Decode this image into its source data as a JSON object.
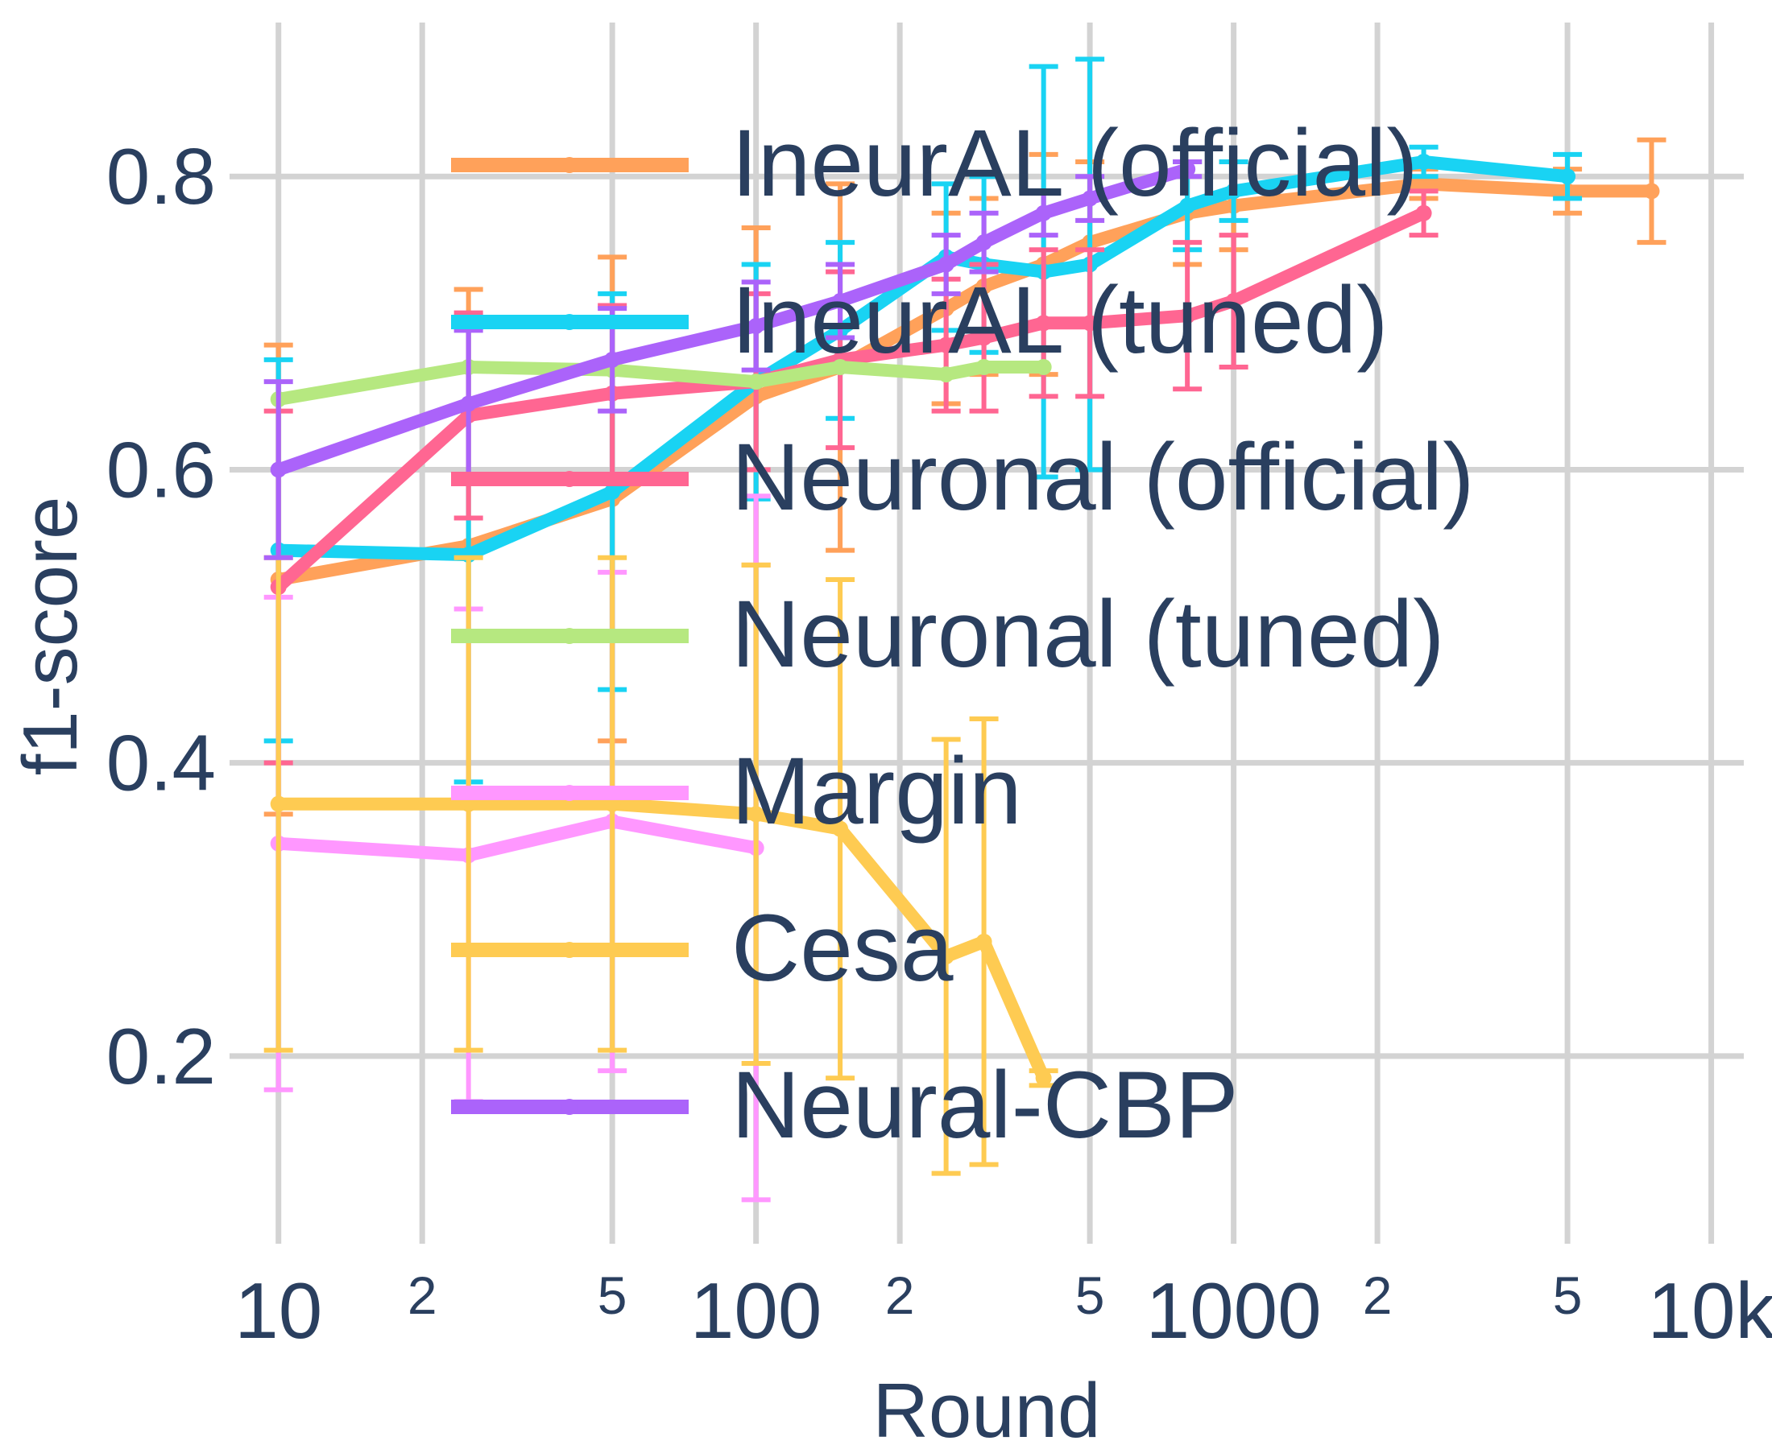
{
  "chart_data": {
    "type": "line",
    "xlabel": "Round",
    "ylabel": "f1-score",
    "x_scale": "log",
    "xlim": [
      7.9,
      11700
    ],
    "ylim": [
      0.072,
      0.905
    ],
    "grid": true,
    "legend_position": "top-left",
    "x_major_ticks": [
      {
        "value": 10,
        "label": "10"
      },
      {
        "value": 100,
        "label": "100"
      },
      {
        "value": 1000,
        "label": "1000"
      },
      {
        "value": 10000,
        "label": "10k"
      }
    ],
    "x_minor_ticks": [
      {
        "value": 20,
        "label": "2"
      },
      {
        "value": 50,
        "label": "5"
      },
      {
        "value": 200,
        "label": "2"
      },
      {
        "value": 500,
        "label": "5"
      },
      {
        "value": 2000,
        "label": "2"
      },
      {
        "value": 5000,
        "label": "5"
      }
    ],
    "y_ticks": [
      {
        "value": 0.2,
        "label": "0.2"
      },
      {
        "value": 0.4,
        "label": "0.4"
      },
      {
        "value": 0.6,
        "label": "0.6"
      },
      {
        "value": 0.8,
        "label": "0.8"
      }
    ],
    "series": [
      {
        "name": "IneurAL (official)",
        "color": "#FFA15A",
        "x": [
          10,
          25,
          50,
          100,
          150,
          250,
          300,
          400,
          500,
          800,
          1000,
          2500,
          5000,
          7500
        ],
        "y": [
          0.525,
          0.548,
          0.58,
          0.65,
          0.67,
          0.71,
          0.725,
          0.74,
          0.755,
          0.775,
          0.78,
          0.795,
          0.79,
          0.79
        ],
        "error": [
          0.16,
          0.175,
          0.165,
          0.115,
          0.125,
          0.065,
          0.06,
          0.075,
          0.055,
          0.035,
          0.03,
          0.01,
          0.015,
          0.035
        ]
      },
      {
        "name": "IneurAL (tuned)",
        "color": "#19D3F3",
        "x": [
          10,
          25,
          50,
          100,
          150,
          250,
          300,
          400,
          500,
          800,
          1000,
          2500,
          5000
        ],
        "y": [
          0.545,
          0.542,
          0.585,
          0.66,
          0.695,
          0.745,
          0.74,
          0.735,
          0.74,
          0.78,
          0.79,
          0.81,
          0.8
        ],
        "error": [
          0.13,
          0.155,
          0.135,
          0.08,
          0.06,
          0.05,
          0.06,
          0.14,
          0.14,
          0.03,
          0.02,
          0.01,
          0.015
        ]
      },
      {
        "name": "Neuronal (official)",
        "color": "#FF6692",
        "x": [
          10,
          25,
          50,
          100,
          150,
          250,
          300,
          400,
          500,
          800,
          1000,
          2500
        ],
        "y": [
          0.52,
          0.637,
          0.652,
          0.66,
          0.675,
          0.685,
          0.69,
          0.7,
          0.7,
          0.705,
          0.715,
          0.775
        ],
        "error": [
          0.12,
          0.07,
          0.06,
          0.06,
          0.06,
          0.045,
          0.05,
          0.05,
          0.05,
          0.05,
          0.045,
          0.015
        ]
      },
      {
        "name": "Neuronal (tuned)",
        "color": "#B6E880",
        "x": [
          10,
          25,
          50,
          100,
          150,
          250,
          300,
          400
        ],
        "y": [
          0.648,
          0.67,
          0.668,
          0.66,
          0.67,
          0.665,
          0.67,
          0.67
        ],
        "error": [
          0,
          0,
          0,
          0,
          0,
          0,
          0,
          0
        ]
      },
      {
        "name": "Margin",
        "color": "#FF97FF",
        "x": [
          10,
          25,
          50,
          100
        ],
        "y": [
          0.345,
          0.337,
          0.36,
          0.342
        ],
        "error": [
          0.168,
          0.168,
          0.17,
          0.24
        ]
      },
      {
        "name": "Cesa",
        "color": "#FECB52",
        "x": [
          10,
          25,
          50,
          100,
          150,
          250,
          300,
          400
        ],
        "y": [
          0.372,
          0.372,
          0.372,
          0.365,
          0.355,
          0.268,
          0.278,
          0.185
        ],
        "error": [
          0.168,
          0.168,
          0.168,
          0.17,
          0.17,
          0.148,
          0.152,
          0.005
        ]
      },
      {
        "name": "Neural-CBP",
        "color": "#AB63FA",
        "x": [
          10,
          25,
          50,
          100,
          150,
          250,
          300,
          400,
          500,
          800
        ],
        "y": [
          0.6,
          0.645,
          0.675,
          0.698,
          0.715,
          0.74,
          0.755,
          0.775,
          0.785,
          0.805
        ],
        "error": [
          0.06,
          0.05,
          0.035,
          0.03,
          0.025,
          0.02,
          0.02,
          0.015,
          0.015,
          0.005
        ]
      }
    ]
  }
}
